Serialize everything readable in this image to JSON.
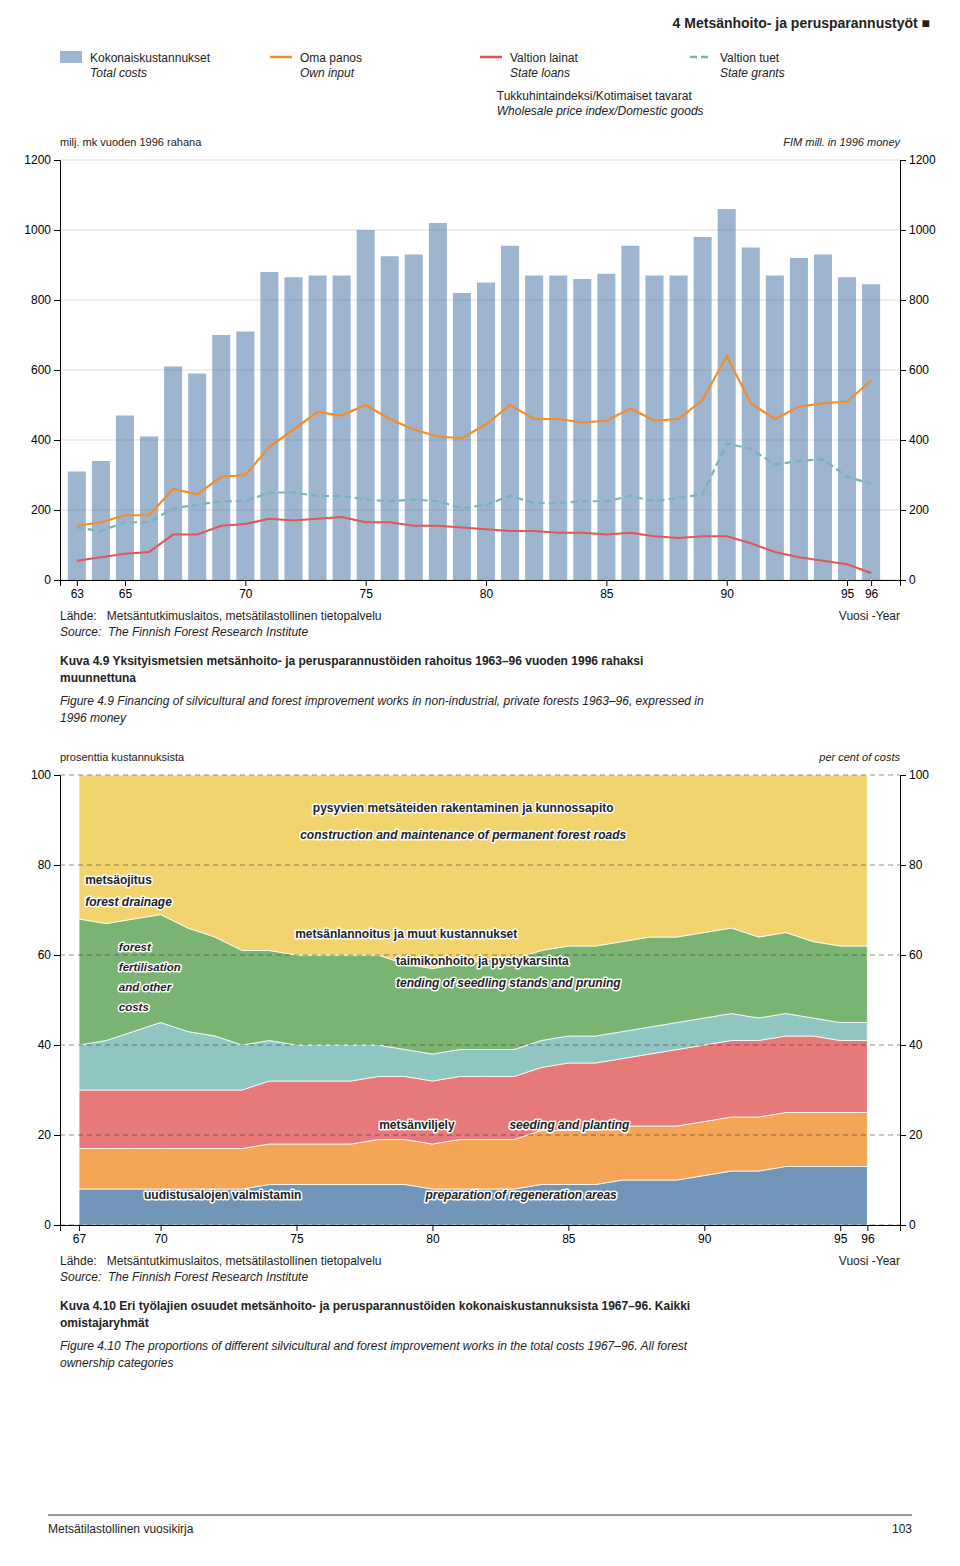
{
  "page_title": "4 Metsänhoito- ja perusparannustyöt ■",
  "chart_data": [
    {
      "type": "bar",
      "x": [
        63,
        64,
        65,
        66,
        67,
        68,
        69,
        70,
        71,
        72,
        73,
        74,
        75,
        76,
        77,
        78,
        79,
        80,
        81,
        82,
        83,
        84,
        85,
        86,
        87,
        88,
        89,
        90,
        91,
        92,
        93,
        94,
        95,
        96
      ],
      "xlim": [
        62.3,
        97.2
      ],
      "xticks": [
        63,
        65,
        70,
        75,
        80,
        85,
        90,
        95,
        96
      ],
      "xlabel": "Vuosi -Year",
      "ylabel": "milj. mk vuoden 1996 rahana",
      "y2label": "FIM mill. in 1996 money",
      "ylim": [
        0,
        1200
      ],
      "yticks": [
        0,
        200,
        400,
        600,
        800,
        1000,
        1200
      ],
      "y2lim": [
        0,
        1200
      ],
      "y2ticks": [
        0,
        200,
        400,
        600,
        800,
        1000,
        1200
      ],
      "grid": true,
      "legend": "top",
      "series": [
        {
          "name": "Kokonaiskustannukset",
          "name_en": "Total costs",
          "type": "bar",
          "values": [
            310,
            340,
            470,
            410,
            610,
            590,
            700,
            710,
            880,
            865,
            870,
            870,
            1000,
            925,
            930,
            1020,
            820,
            850,
            955,
            870,
            870,
            860,
            875,
            955,
            870,
            870,
            980,
            1060,
            950,
            870,
            920,
            930,
            865,
            845
          ]
        },
        {
          "name": "Oma panos",
          "name_en": "Own input",
          "type": "line",
          "line_style": "solid",
          "values": [
            155,
            165,
            185,
            185,
            260,
            245,
            295,
            300,
            380,
            430,
            480,
            470,
            500,
            460,
            430,
            410,
            405,
            445,
            500,
            460,
            460,
            450,
            455,
            490,
            455,
            460,
            515,
            640,
            505,
            460,
            495,
            505,
            510,
            570
          ]
        },
        {
          "name": "Valtion lainat",
          "name_en": "State loans",
          "type": "line",
          "line_style": "solid",
          "values": [
            55,
            65,
            75,
            80,
            130,
            130,
            155,
            160,
            175,
            170,
            175,
            180,
            165,
            165,
            155,
            155,
            150,
            145,
            140,
            140,
            135,
            135,
            130,
            135,
            125,
            120,
            125,
            125,
            105,
            80,
            65,
            55,
            45,
            20
          ]
        },
        {
          "name": "Valtion tuet",
          "name_en": "State grants",
          "type": "line",
          "line_style": "dashed",
          "values": [
            150,
            140,
            165,
            165,
            205,
            215,
            225,
            225,
            250,
            250,
            240,
            240,
            230,
            225,
            230,
            225,
            205,
            215,
            240,
            220,
            220,
            225,
            225,
            240,
            225,
            235,
            245,
            390,
            375,
            330,
            340,
            345,
            295,
            275
          ]
        }
      ],
      "annotations": [
        "Tukkuhintaindeksi/Kotimaiset tavarat",
        "Wholesale price index/Domestic goods"
      ],
      "source": [
        "Lähde:   Metsäntutkimuslaitos, metsätilastollinen tietopalvelu",
        "Source:  The Finnish Forest Research Institute"
      ],
      "caption": [
        "Kuva 4.9 Yksityismetsien metsänhoito- ja perusparannustöiden rahoitus 1963–96 vuoden 1996 rahaksi",
        "muunnettuna",
        "Figure 4.9 Financing of silvicultural and forest improvement works in non-industrial, private forests 1963–96, expressed in",
        "1996 money"
      ]
    },
    {
      "type": "area",
      "stacked": true,
      "x": [
        67,
        68,
        69,
        70,
        71,
        72,
        73,
        74,
        75,
        76,
        77,
        78,
        79,
        80,
        81,
        82,
        83,
        84,
        85,
        86,
        87,
        88,
        89,
        90,
        91,
        92,
        93,
        94,
        95,
        96
      ],
      "xlim": [
        66.3,
        97.2
      ],
      "xticks": [
        67,
        70,
        75,
        80,
        85,
        90,
        95,
        96
      ],
      "xlabel": "Vuosi -Year",
      "ylabel": "prosenttia kustannuksista",
      "y2label": "per cent of costs",
      "ylim": [
        0,
        100
      ],
      "yticks": [
        0,
        20,
        40,
        60,
        80,
        100
      ],
      "y2lim": [
        0,
        100
      ],
      "y2ticks": [
        0,
        20,
        40,
        60,
        80,
        100
      ],
      "grid": true,
      "series": [
        {
          "name": "uudistusalojen valmistamin",
          "values": [
            8,
            8,
            8,
            8,
            8,
            8,
            8,
            9,
            9,
            9,
            9,
            9,
            9,
            8,
            8,
            8,
            8,
            9,
            9,
            9,
            10,
            10,
            10,
            11,
            12,
            12,
            13,
            13,
            13,
            13
          ]
        },
        {
          "name": "metsänviljely",
          "values": [
            9,
            9,
            9,
            9,
            9,
            9,
            9,
            9,
            9,
            9,
            9,
            10,
            10,
            10,
            11,
            11,
            11,
            12,
            12,
            12,
            12,
            12,
            12,
            12,
            12,
            12,
            12,
            12,
            12,
            12
          ]
        },
        {
          "name": "taimikonhoito ja pystykarsinta",
          "values": [
            13,
            13,
            13,
            13,
            13,
            13,
            13,
            14,
            14,
            14,
            14,
            14,
            14,
            14,
            14,
            14,
            14,
            14,
            15,
            15,
            15,
            16,
            17,
            17,
            17,
            17,
            17,
            17,
            16,
            16
          ]
        },
        {
          "name": "metsänlannoitus ja muut kustannukset",
          "values": [
            10,
            11,
            13,
            15,
            13,
            12,
            10,
            9,
            8,
            8,
            8,
            7,
            6,
            6,
            6,
            6,
            6,
            6,
            6,
            6,
            6,
            6,
            6,
            6,
            6,
            5,
            5,
            4,
            4,
            4
          ]
        },
        {
          "name": "metsäojitus",
          "values": [
            28,
            26,
            25,
            24,
            23,
            22,
            21,
            20,
            20,
            20,
            20,
            20,
            19,
            19,
            19,
            20,
            20,
            20,
            20,
            20,
            20,
            20,
            19,
            19,
            19,
            18,
            18,
            17,
            17,
            17
          ]
        },
        {
          "name": "pysyvien metsäteiden rakentaminen ja kunnossapito",
          "values": [
            32,
            33,
            32,
            31,
            34,
            36,
            39,
            39,
            40,
            40,
            40,
            40,
            42,
            43,
            42,
            41,
            41,
            39,
            38,
            38,
            37,
            36,
            36,
            35,
            34,
            36,
            35,
            37,
            38,
            38
          ]
        }
      ],
      "annotations": [
        "construction and maintenance of permanent forest roads",
        "forest drainage",
        "forest",
        "fertilisation",
        "and other",
        "costs",
        "tending of seedling stands and pruning",
        "seeding and planting",
        "preparation of regeneration areas"
      ],
      "source": [
        "Lähde:   Metsäntutkimuslaitos, metsätilastollinen tietopalvelu",
        "Source:  The Finnish Forest Research Institute"
      ],
      "caption": [
        "Kuva 4.10 Eri työlajien osuudet metsänhoito- ja perusparannustöiden kokonaiskustannuksista 1967–96. Kaikki",
        "omistajaryhmät",
        "Figure 4.10 The proportions of different silvicultural and forest improvement works in the total costs 1967–96. All forest",
        "ownership categories"
      ]
    }
  ],
  "footer": "Metsätilastollinen vuosikirja",
  "footer_right": "103"
}
